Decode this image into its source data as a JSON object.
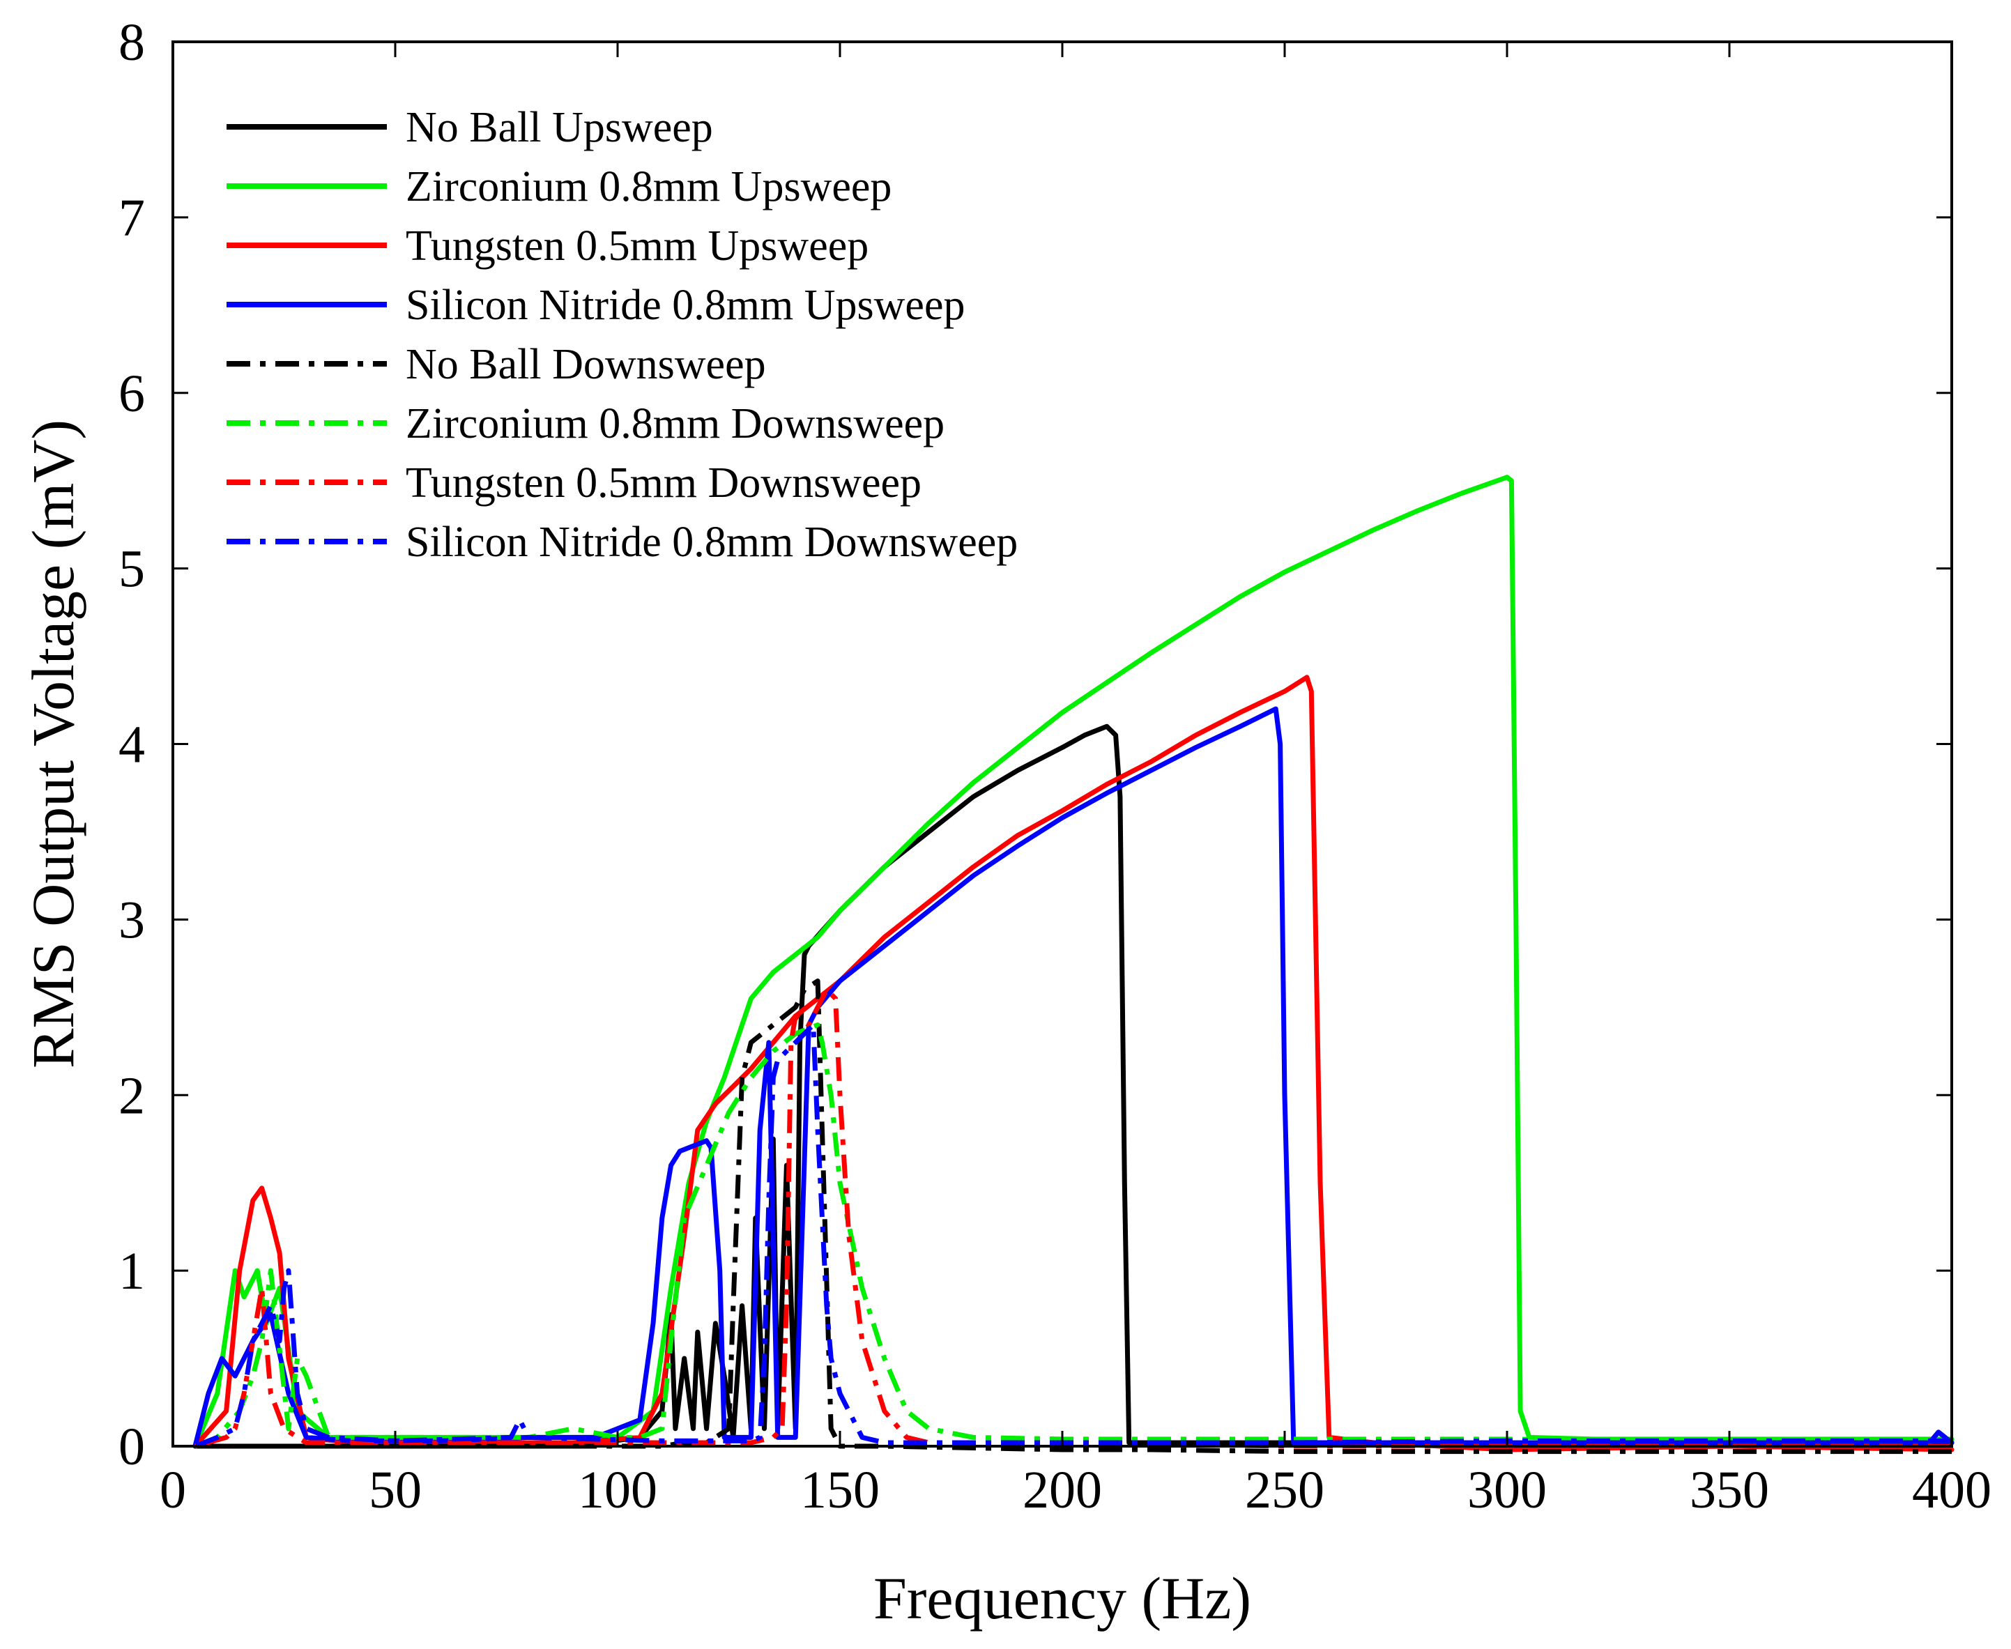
{
  "chart_data": {
    "type": "line",
    "title": "",
    "xlabel": "Frequency (Hz)",
    "ylabel": "RMS Output Voltage (mV)",
    "xlim": [
      0,
      400
    ],
    "ylim": [
      0,
      8
    ],
    "xticks": [
      0,
      50,
      100,
      150,
      200,
      250,
      300,
      350,
      400
    ],
    "yticks": [
      0,
      1,
      2,
      3,
      4,
      5,
      6,
      7,
      8
    ],
    "grid": false,
    "legend_position": "top-left",
    "series": [
      {
        "name": "No Ball Upsweep",
        "color": "#000000",
        "style": "solid",
        "x": [
          5,
          30,
          60,
          90,
          105,
          110,
          112,
          113,
          115,
          117,
          118,
          120,
          122,
          124,
          126,
          128,
          130,
          131,
          133,
          135,
          136,
          138,
          140,
          141,
          142,
          143,
          150,
          160,
          170,
          180,
          190,
          200,
          205,
          210,
          212,
          213,
          214,
          215,
          220,
          260,
          300,
          350,
          400
        ],
        "y": [
          0.0,
          0.0,
          0.0,
          0.0,
          0.05,
          0.2,
          0.75,
          0.1,
          0.5,
          0.1,
          0.65,
          0.1,
          0.7,
          0.4,
          0.05,
          0.8,
          0.1,
          1.3,
          0.1,
          1.75,
          0.1,
          1.6,
          0.1,
          2.3,
          2.8,
          2.85,
          3.05,
          3.3,
          3.5,
          3.7,
          3.85,
          3.98,
          4.05,
          4.1,
          4.05,
          3.7,
          1.5,
          0.02,
          0.02,
          0.02,
          0.02,
          0.02,
          0.02
        ]
      },
      {
        "name": "Zirconium 0.8mm Upsweep",
        "color": "#00ee00",
        "style": "solid",
        "x": [
          5,
          10,
          14,
          16,
          19,
          21,
          24,
          28,
          35,
          50,
          80,
          100,
          108,
          112,
          116,
          120,
          124,
          128,
          130,
          135,
          140,
          145,
          150,
          160,
          170,
          180,
          190,
          200,
          210,
          220,
          230,
          240,
          250,
          260,
          270,
          280,
          290,
          300,
          301,
          302,
          303,
          305,
          320,
          350,
          400
        ],
        "y": [
          0.0,
          0.3,
          1.0,
          0.85,
          1.0,
          0.7,
          0.9,
          0.2,
          0.05,
          0.05,
          0.05,
          0.05,
          0.2,
          0.9,
          1.5,
          1.85,
          2.1,
          2.4,
          2.55,
          2.7,
          2.8,
          2.9,
          3.05,
          3.3,
          3.55,
          3.78,
          3.98,
          4.18,
          4.35,
          4.52,
          4.68,
          4.84,
          4.98,
          5.1,
          5.22,
          5.33,
          5.43,
          5.52,
          5.5,
          3.0,
          0.2,
          0.05,
          0.04,
          0.04,
          0.04
        ]
      },
      {
        "name": "Tungsten 0.5mm Upsweep",
        "color": "#ff0000",
        "style": "solid",
        "x": [
          5,
          12,
          15,
          18,
          20,
          22,
          24,
          26,
          30,
          40,
          60,
          90,
          105,
          110,
          115,
          118,
          122,
          126,
          130,
          135,
          140,
          145,
          150,
          160,
          170,
          180,
          190,
          200,
          210,
          220,
          230,
          240,
          250,
          255,
          256,
          258,
          260,
          270,
          300,
          350,
          400
        ],
        "y": [
          0.0,
          0.2,
          1.0,
          1.4,
          1.47,
          1.3,
          1.1,
          0.5,
          0.05,
          0.02,
          0.02,
          0.02,
          0.05,
          0.3,
          1.2,
          1.8,
          1.95,
          2.05,
          2.15,
          2.3,
          2.45,
          2.55,
          2.65,
          2.9,
          3.1,
          3.3,
          3.48,
          3.62,
          3.77,
          3.9,
          4.05,
          4.18,
          4.3,
          4.38,
          4.3,
          1.5,
          0.05,
          0.02,
          -0.02,
          0.0,
          -0.02
        ]
      },
      {
        "name": "Silicon Nitride 0.8mm Upsweep",
        "color": "#0000ff",
        "style": "solid",
        "x": [
          5,
          8,
          11,
          14,
          18,
          22,
          26,
          30,
          40,
          60,
          80,
          95,
          105,
          108,
          110,
          112,
          114,
          116,
          118,
          120,
          121,
          123,
          124,
          126,
          128,
          130,
          132,
          134,
          136,
          138,
          140,
          143,
          145,
          150,
          160,
          170,
          180,
          190,
          200,
          210,
          220,
          230,
          240,
          248,
          249,
          250,
          252,
          270,
          300,
          350,
          395,
          397,
          400
        ],
        "y": [
          0.0,
          0.3,
          0.5,
          0.4,
          0.6,
          0.75,
          0.3,
          0.05,
          0.03,
          0.03,
          0.05,
          0.05,
          0.15,
          0.7,
          1.3,
          1.6,
          1.68,
          1.7,
          1.72,
          1.74,
          1.7,
          1.0,
          0.05,
          0.05,
          0.05,
          0.05,
          1.8,
          2.3,
          0.05,
          0.05,
          0.05,
          2.4,
          2.5,
          2.65,
          2.85,
          3.05,
          3.25,
          3.42,
          3.58,
          3.72,
          3.85,
          3.98,
          4.1,
          4.2,
          4.0,
          2.0,
          0.02,
          0.02,
          0.02,
          0.02,
          0.02,
          0.08,
          0.02
        ]
      },
      {
        "name": "No Ball Downsweep",
        "color": "#000000",
        "style": "dashdot",
        "x": [
          400,
          350,
          300,
          250,
          220,
          200,
          180,
          160,
          150,
          148,
          145,
          142,
          140,
          135,
          130,
          128,
          126,
          125,
          122,
          120,
          115,
          110,
          100,
          90,
          80,
          50,
          20,
          5
        ],
        "y": [
          -0.03,
          -0.03,
          -0.03,
          -0.03,
          -0.02,
          -0.02,
          -0.01,
          0.0,
          0.0,
          0.1,
          2.65,
          2.6,
          2.5,
          2.4,
          2.3,
          2.1,
          0.8,
          0.1,
          0.05,
          0.02,
          0.02,
          0.0,
          0.0,
          0.0,
          0.0,
          0.0,
          0.0,
          0.0
        ]
      },
      {
        "name": "Zirconium 0.8mm Downsweep",
        "color": "#00ee00",
        "style": "dashdot",
        "x": [
          400,
          350,
          300,
          250,
          200,
          180,
          170,
          165,
          160,
          155,
          150,
          148,
          146,
          145,
          140,
          135,
          130,
          125,
          120,
          115,
          112,
          110,
          105,
          100,
          90,
          80,
          50,
          35,
          30,
          28,
          26,
          22,
          20,
          18,
          15,
          10,
          5
        ],
        "y": [
          0.03,
          0.03,
          0.04,
          0.04,
          0.04,
          0.05,
          0.1,
          0.2,
          0.5,
          0.9,
          1.5,
          2.0,
          2.3,
          2.4,
          2.35,
          2.25,
          2.1,
          1.9,
          1.6,
          1.3,
          0.6,
          0.1,
          0.05,
          0.05,
          0.1,
          0.05,
          0.05,
          0.05,
          0.4,
          0.5,
          0.1,
          1.0,
          0.6,
          0.4,
          0.2,
          0.05,
          0.0
        ]
      },
      {
        "name": "Tungsten 0.5mm Downsweep",
        "color": "#ff0000",
        "style": "dashdot",
        "x": [
          400,
          350,
          300,
          250,
          200,
          170,
          165,
          160,
          155,
          152,
          150,
          149,
          147,
          145,
          143,
          140,
          139,
          138,
          137,
          135,
          130,
          110,
          80,
          50,
          30,
          25,
          22,
          20,
          18,
          16,
          14,
          12,
          5
        ],
        "y": [
          0.0,
          0.0,
          0.0,
          0.0,
          0.02,
          0.02,
          0.05,
          0.2,
          0.6,
          1.2,
          2.0,
          2.55,
          2.6,
          2.5,
          2.4,
          2.45,
          2.3,
          0.8,
          0.1,
          0.05,
          0.02,
          0.02,
          0.02,
          0.02,
          0.02,
          0.1,
          0.3,
          0.9,
          0.6,
          0.3,
          0.1,
          0.05,
          0.0
        ]
      },
      {
        "name": "Silicon Nitride 0.8mm Downsweep",
        "color": "#0000ff",
        "style": "dashdot",
        "x": [
          400,
          350,
          300,
          250,
          200,
          160,
          155,
          150,
          148,
          147,
          145,
          144,
          142,
          140,
          138,
          136,
          135,
          134,
          133,
          132,
          130,
          125,
          110,
          80,
          78,
          76,
          50,
          35,
          30,
          28,
          26,
          25,
          24,
          22,
          20,
          18,
          16,
          14,
          10,
          5
        ],
        "y": [
          0.03,
          0.03,
          0.03,
          0.02,
          0.02,
          0.02,
          0.05,
          0.3,
          0.5,
          0.8,
          1.8,
          2.4,
          2.35,
          2.3,
          2.25,
          2.2,
          2.1,
          1.4,
          0.5,
          0.05,
          0.03,
          0.03,
          0.03,
          0.05,
          0.15,
          0.05,
          0.03,
          0.05,
          0.1,
          0.3,
          1.0,
          0.9,
          0.6,
          0.8,
          0.7,
          0.6,
          0.3,
          0.1,
          0.05,
          0.0
        ]
      }
    ]
  }
}
